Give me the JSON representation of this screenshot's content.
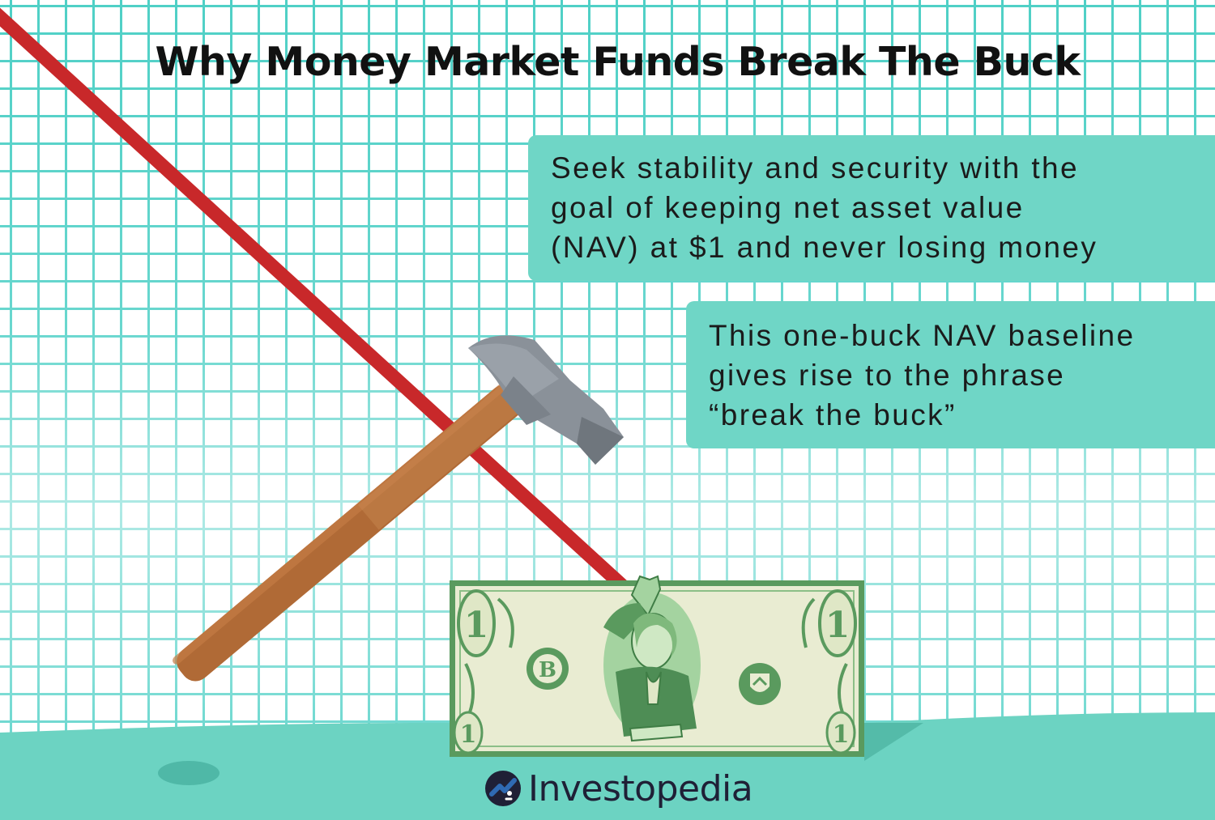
{
  "title": "Why Money Market Funds Break The Buck",
  "callouts": [
    {
      "lines": [
        "Seek stability and security with the",
        "goal of keeping net asset value",
        "(NAV) at $1 and never losing money"
      ]
    },
    {
      "lines": [
        "This one-buck NAV baseline",
        "gives rise to the phrase",
        "“break the buck”"
      ]
    }
  ],
  "bill": {
    "denomination": "1",
    "seal_letter": "B"
  },
  "brand": {
    "name": "Investopedia"
  },
  "icons": [
    "hammer-icon",
    "declining-line",
    "dollar-bill",
    "investopedia-logo-icon"
  ],
  "colors": {
    "grid": "#4fd0c6",
    "callout_fill": "#6fd6c6",
    "ground": "#6cd3c2",
    "trend_line": "#c8282a",
    "hammer_handle": "#b06a36",
    "hammer_head": "#8a9199",
    "bill_green": "#5a9a5e",
    "bill_paper": "#e9ecd2",
    "logo_dark": "#1f2036",
    "logo_blue": "#2f6ab3"
  }
}
